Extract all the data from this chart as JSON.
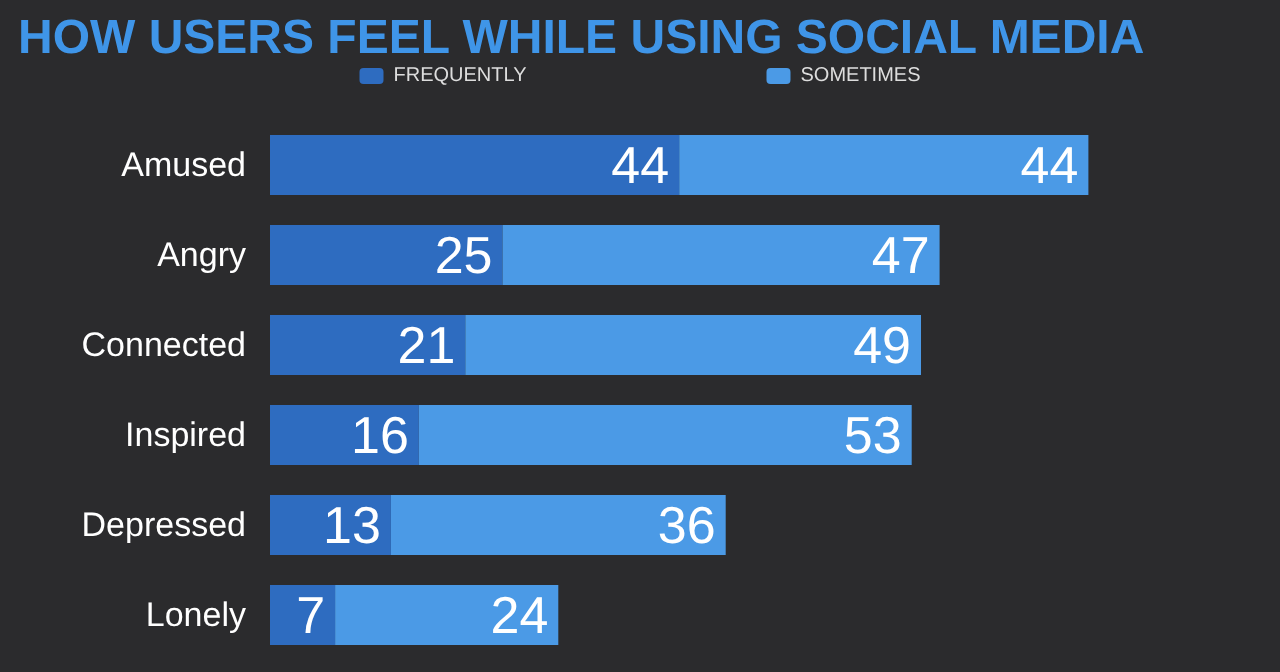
{
  "chart_data": {
    "type": "bar",
    "title": "HOW USERS FEEL WHILE USING SOCIAL MEDIA",
    "orientation": "horizontal",
    "stacked": true,
    "data_labels": true,
    "legend": "top",
    "categories": [
      "Amused",
      "Angry",
      "Connected",
      "Inspired",
      "Depressed",
      "Lonely"
    ],
    "series": [
      {
        "name": "FREQUENTLY",
        "color": "#2e6cc0",
        "values": [
          44,
          25,
          21,
          16,
          13,
          7
        ]
      },
      {
        "name": "SOMETIMES",
        "color": "#4b9ae6",
        "values": [
          44,
          47,
          49,
          53,
          36,
          24
        ]
      }
    ]
  }
}
